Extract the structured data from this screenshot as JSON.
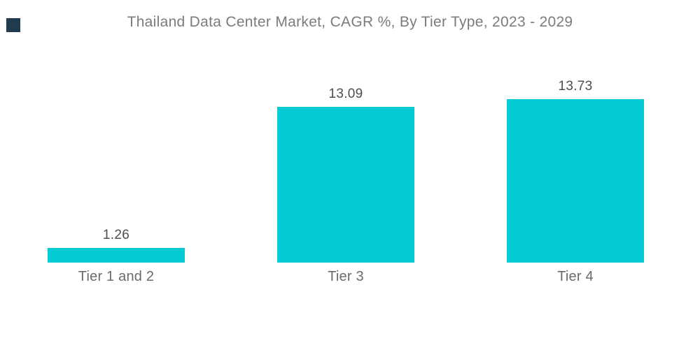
{
  "logo": {
    "color": "#1F3B4D"
  },
  "chart_data": {
    "type": "bar",
    "title": "Thailand Data Center Market, CAGR %, By Tier Type, 2023 - 2029",
    "categories": [
      "Tier 1 and 2",
      "Tier 3",
      "Tier 4"
    ],
    "values": [
      1.26,
      13.09,
      13.73
    ],
    "value_labels": [
      "1.26",
      "13.09",
      "13.73"
    ],
    "xlabel": "",
    "ylabel": "",
    "bar_color": "#04CBD2",
    "background_color": "#FFFFFF",
    "title_color": "#7B7B7B",
    "value_label_color": "#4D4D4D",
    "category_label_color": "#6A6A6A",
    "axes_visible": false,
    "grid": false,
    "legend": "none",
    "ylim": [
      0,
      22
    ]
  }
}
